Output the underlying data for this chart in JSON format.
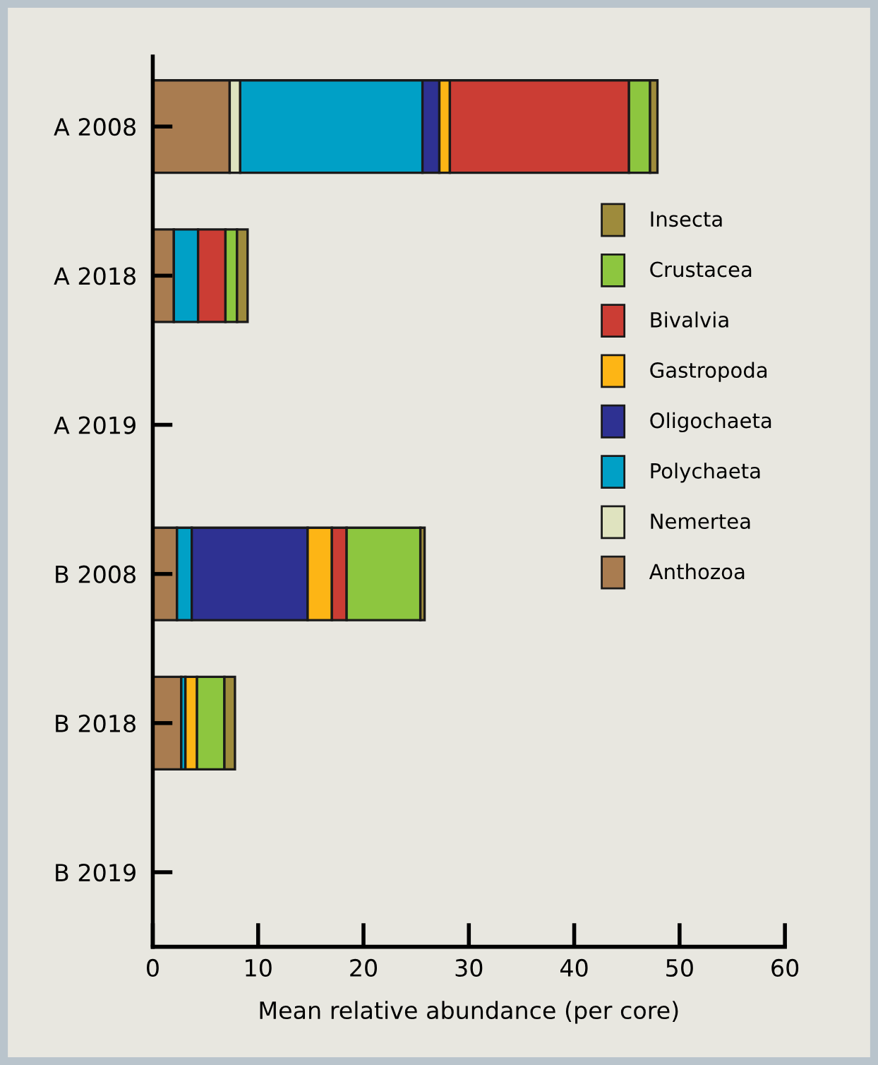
{
  "chart_data": {
    "type": "bar",
    "orientation": "horizontal",
    "stacked": true,
    "categories": [
      "A 2008",
      "A 2018",
      "A 2019",
      "B 2008",
      "B 2018",
      "B 2019"
    ],
    "xlabel": "Mean relative abundance (per core)",
    "xlim": [
      0,
      60
    ],
    "xticks": [
      0,
      10,
      20,
      30,
      40,
      50,
      60
    ],
    "grid": false,
    "legend": "top right",
    "series": [
      {
        "name": "Anthozoa",
        "color": "#a97c50",
        "values": [
          7.3,
          2.0,
          null,
          2.3,
          2.7,
          null
        ]
      },
      {
        "name": "Nemertea",
        "color": "#dfe3bf",
        "values": [
          1.0,
          null,
          null,
          null,
          null,
          null
        ]
      },
      {
        "name": "Polychaeta",
        "color": "#00a0c6",
        "values": [
          17.3,
          2.3,
          null,
          1.4,
          0.4,
          null
        ]
      },
      {
        "name": "Oligochaeta",
        "color": "#2e3192",
        "values": [
          1.6,
          null,
          null,
          11.0,
          null,
          null
        ]
      },
      {
        "name": "Gastropoda",
        "color": "#fdb515",
        "values": [
          1.0,
          null,
          null,
          2.3,
          1.1,
          null
        ]
      },
      {
        "name": "Bivalvia",
        "color": "#cb3d34",
        "values": [
          17.0,
          2.6,
          null,
          1.4,
          null,
          null
        ]
      },
      {
        "name": "Crustacea",
        "color": "#8dc63f",
        "values": [
          2.0,
          1.1,
          null,
          7.0,
          2.6,
          null
        ]
      },
      {
        "name": "Insecta",
        "color": "#9e8b3c",
        "values": [
          0.7,
          1.0,
          null,
          0.4,
          1.0,
          null
        ]
      }
    ]
  }
}
